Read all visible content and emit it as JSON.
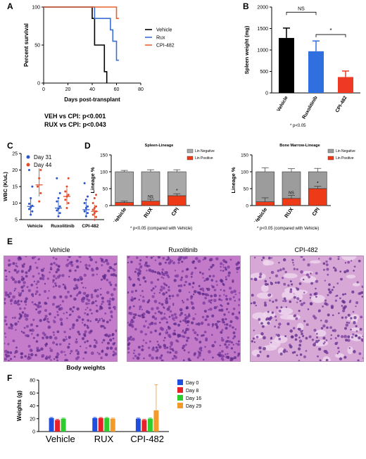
{
  "panel_labels": {
    "a": "A",
    "b": "B",
    "c": "C",
    "d": "D",
    "e": "E",
    "f": "F"
  },
  "stats": {
    "veh_cpi": "VEH vs CPI: p<0.001",
    "rux_cpi": "RUX vs CPI: p<0.043",
    "b_note": "* p<0.05",
    "d_note1": "* p<0.05 (compared with Vehicle)",
    "d_note2": "p<0.05 (compared with Vehicle)"
  },
  "histology": {
    "titles": [
      "Vehicle",
      "Ruxolitinib",
      "CPI-482"
    ],
    "colors": {
      "vehicle": "#c47ccb",
      "ruxolitinib": "#c27ac9",
      "cpi": "#d7a8d6"
    }
  },
  "chart_data": [
    {
      "id": "A",
      "type": "line",
      "title": "",
      "xlabel": "Days post-transplant",
      "ylabel": "Percent survival",
      "xlim": [
        0,
        80
      ],
      "ylim": [
        0,
        100
      ],
      "xticks": [
        0,
        20,
        40,
        60,
        80
      ],
      "yticks": [
        0,
        50,
        100
      ],
      "legend_position": "right",
      "series": [
        {
          "name": "Vehicle",
          "color": "#000000",
          "points": [
            [
              0,
              100
            ],
            [
              40,
              100
            ],
            [
              40,
              85
            ],
            [
              42,
              85
            ],
            [
              42,
              50
            ],
            [
              50,
              50
            ],
            [
              50,
              15
            ],
            [
              52,
              15
            ],
            [
              52,
              0
            ]
          ]
        },
        {
          "name": "Rux",
          "color": "#3a6fd1",
          "points": [
            [
              0,
              100
            ],
            [
              42,
              100
            ],
            [
              42,
              85
            ],
            [
              55,
              85
            ],
            [
              55,
              70
            ],
            [
              57,
              70
            ],
            [
              57,
              55
            ],
            [
              60,
              55
            ],
            [
              60,
              30
            ],
            [
              62,
              30
            ]
          ]
        },
        {
          "name": "CPI-482",
          "color": "#e8622c",
          "points": [
            [
              0,
              100
            ],
            [
              60,
              100
            ],
            [
              60,
              85
            ],
            [
              62,
              85
            ]
          ]
        }
      ]
    },
    {
      "id": "B",
      "type": "bar",
      "title": "",
      "xlabel": "",
      "ylabel": "Spleen weight (mg)",
      "ylim": [
        0,
        2000
      ],
      "yticks": [
        0,
        500,
        1000,
        1500,
        2000
      ],
      "categories": [
        "Vehicle",
        "Ruxolitinib",
        "CPI-482"
      ],
      "values": [
        1280,
        970,
        370
      ],
      "errors": [
        230,
        240,
        140
      ],
      "colors": [
        "#000000",
        "#2f6fe0",
        "#ee3a24"
      ],
      "annotations": [
        {
          "between": [
            "Vehicle",
            "Ruxolitinib"
          ],
          "text": "NS"
        },
        {
          "between": [
            "Ruxolitinib",
            "CPI-482"
          ],
          "text": "*"
        }
      ]
    },
    {
      "id": "C",
      "type": "scatter",
      "title": "",
      "xlabel": "",
      "ylabel": "WBC (K/uL)",
      "ylim": [
        5,
        25
      ],
      "yticks": [
        5,
        10,
        15,
        20,
        25
      ],
      "categories": [
        "Vehicle",
        "Ruxolitinib",
        "CPI-482"
      ],
      "legend_position": "top-left",
      "series": [
        {
          "name": "Day 31",
          "color": "#2a55c9",
          "points": [
            [
              0,
              6.5
            ],
            [
              0,
              7.5
            ],
            [
              0,
              8.2
            ],
            [
              0,
              8.7
            ],
            [
              0,
              9.2
            ],
            [
              0,
              9.8
            ],
            [
              0,
              11.5
            ],
            [
              0,
              15
            ],
            [
              0,
              20
            ],
            [
              1,
              6
            ],
            [
              1,
              7
            ],
            [
              1,
              7.8
            ],
            [
              1,
              8.3
            ],
            [
              1,
              9
            ],
            [
              1,
              10.5
            ],
            [
              1,
              11.5
            ],
            [
              1,
              13
            ],
            [
              1,
              17.5
            ],
            [
              2,
              6
            ],
            [
              2,
              7
            ],
            [
              2,
              7.5
            ],
            [
              2,
              8.5
            ],
            [
              2,
              9
            ],
            [
              2,
              10
            ],
            [
              2,
              11
            ],
            [
              2,
              12
            ],
            [
              2,
              16
            ]
          ],
          "means": [
            9,
            8.5,
            8
          ],
          "sd": [
            [
              6.8,
              11.8
            ],
            [
              6.5,
              11
            ],
            [
              6.2,
              10.5
            ]
          ]
        },
        {
          "name": "Day 44",
          "color": "#e04a2a",
          "points": [
            [
              0,
              10.5
            ],
            [
              0,
              13
            ],
            [
              0,
              15
            ],
            [
              0,
              17.5
            ],
            [
              0,
              20
            ],
            [
              1,
              8.5
            ],
            [
              1,
              10
            ],
            [
              1,
              11
            ],
            [
              1,
              12
            ],
            [
              1,
              12.5
            ],
            [
              1,
              13.5
            ],
            [
              1,
              15
            ],
            [
              1,
              17.5
            ],
            [
              2,
              5
            ],
            [
              2,
              5.8
            ],
            [
              2,
              6.5
            ],
            [
              2,
              7
            ],
            [
              2,
              7.5
            ],
            [
              2,
              8
            ],
            [
              2,
              8.5
            ],
            [
              2,
              9
            ],
            [
              2,
              10
            ],
            [
              2,
              11.5
            ],
            [
              2,
              12.5
            ]
          ],
          "means": [
            15.5,
            12,
            7.5
          ],
          "sd": [
            [
              12,
              20.5
            ],
            [
              9.5,
              14.5
            ],
            [
              5.5,
              9.5
            ]
          ]
        }
      ]
    },
    {
      "id": "D1",
      "type": "bar",
      "title": "Spleen-Lineage",
      "xlabel": "",
      "ylabel": "Lineage %",
      "ylim": [
        0,
        150
      ],
      "yticks": [
        0,
        50,
        100,
        150
      ],
      "categories": [
        "Vehicle",
        "RUX",
        "CPI"
      ],
      "legend_position": "top-right",
      "series": [
        {
          "name": "Lin Positive",
          "color": "#ee3a17",
          "values": [
            9,
            13,
            29
          ],
          "errors": [
            4,
            6,
            6
          ]
        },
        {
          "name": "Lin Negative",
          "color": "#a8a8a8",
          "values": [
            91,
            87,
            71
          ],
          "errors": [
            4,
            6,
            6
          ]
        }
      ],
      "annotations": [
        {
          "category": "RUX",
          "text": "NS"
        },
        {
          "category": "CPI",
          "text": "*"
        }
      ]
    },
    {
      "id": "D2",
      "type": "bar",
      "title": "Bone Marrow-Lineage",
      "xlabel": "",
      "ylabel": "Lineage %",
      "ylim": [
        0,
        150
      ],
      "yticks": [
        0,
        50,
        100,
        150
      ],
      "categories": [
        "Vehicle",
        "RUX",
        "CPI"
      ],
      "legend_position": "top-right",
      "series": [
        {
          "name": "Lin Positive",
          "color": "#ee3a17",
          "values": [
            11,
            21,
            50
          ],
          "errors": [
            12,
            9,
            7
          ]
        },
        {
          "name": "Lin Negative",
          "color": "#9c9c9c",
          "values": [
            89,
            79,
            50
          ],
          "errors": [
            12,
            9,
            10
          ]
        }
      ],
      "annotations": [
        {
          "category": "RUX",
          "text": "NS"
        },
        {
          "category": "CPI",
          "text": "*"
        }
      ]
    },
    {
      "id": "F",
      "type": "bar",
      "title": "Body weights",
      "xlabel": "",
      "ylabel": "Weights (g)",
      "ylim": [
        0,
        80
      ],
      "yticks": [
        0,
        20,
        40,
        60,
        80
      ],
      "categories": [
        "Vehicle",
        "RUX",
        "CPI-482"
      ],
      "legend_position": "right",
      "series": [
        {
          "name": "Day 0",
          "color": "#1f4fe0",
          "values": [
            21,
            21,
            20
          ],
          "errors": [
            1,
            1,
            1
          ]
        },
        {
          "name": "Day 8",
          "color": "#e8202a",
          "values": [
            18,
            21,
            18
          ],
          "errors": [
            1,
            1,
            1
          ]
        },
        {
          "name": "Day 16",
          "color": "#2fcc2f",
          "values": [
            20,
            21,
            20
          ],
          "errors": [
            1,
            1,
            1
          ]
        },
        {
          "name": "Day 29",
          "color": "#f39a2a",
          "values": [
            null,
            20,
            33
          ],
          "errors": [
            0,
            1,
            40
          ]
        }
      ]
    }
  ]
}
